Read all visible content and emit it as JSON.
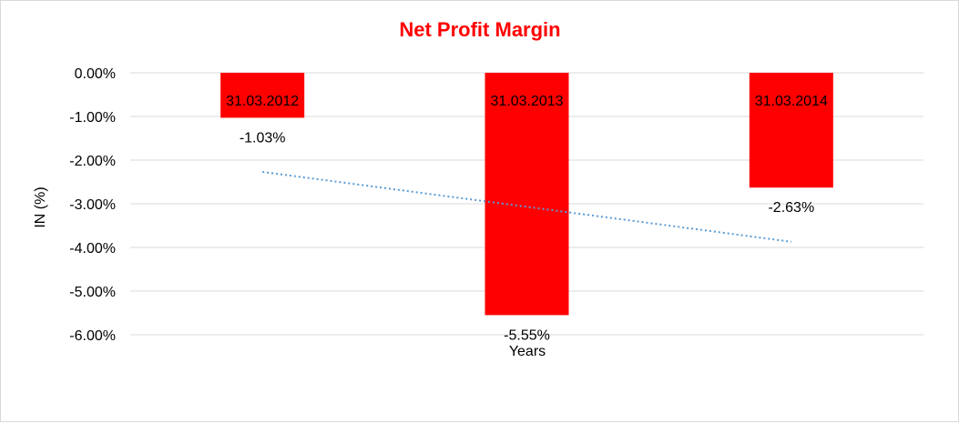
{
  "chart_data": {
    "type": "bar",
    "title": "Net Profit Margin",
    "xlabel": "Years",
    "ylabel": "IN (%)",
    "categories": [
      "31.03.2012",
      "31.03.2013",
      "31.03.2014"
    ],
    "values": [
      -1.03,
      -5.55,
      -2.63
    ],
    "data_labels": [
      "-1.03%",
      "-5.55%",
      "-2.63%"
    ],
    "ylim": [
      -6,
      0
    ],
    "yticks": [
      0,
      -1,
      -2,
      -3,
      -4,
      -5,
      -6
    ],
    "ytick_labels": [
      "0.00%",
      "-1.00%",
      "-2.00%",
      "-3.00%",
      "-4.00%",
      "-5.00%",
      "-6.00%"
    ],
    "trendline": {
      "type": "linear",
      "style": "dotted"
    },
    "grid": true,
    "legend": "none",
    "colors": {
      "bar": "#ff0000",
      "title": "#ff0000",
      "trendline": "#5b9bd5",
      "grid": "#d9d9d9"
    }
  }
}
